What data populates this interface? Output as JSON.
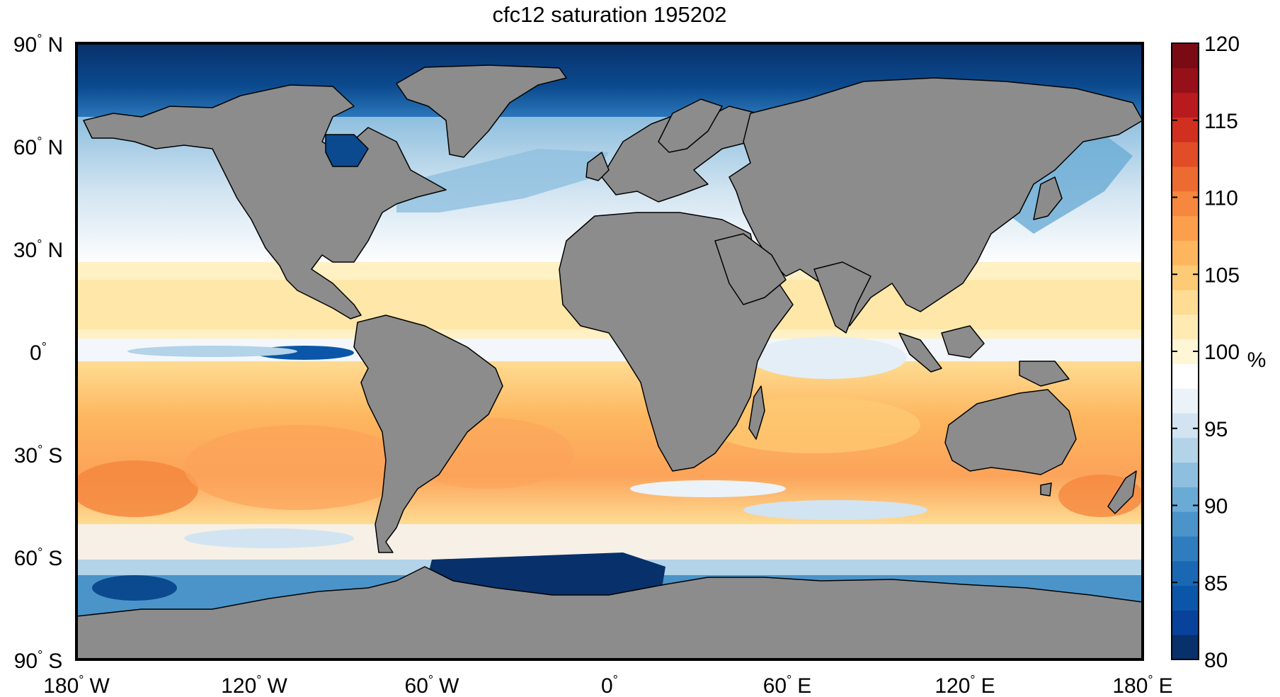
{
  "title": "cfc12 saturation 195202",
  "map": {
    "projection": "equirectangular",
    "lon_range": [
      -180,
      180
    ],
    "lat_range": [
      -90,
      90
    ],
    "land_color": "#8c8c8c",
    "coastline_color": "#000000"
  },
  "y_ticks": [
    {
      "lat": 90,
      "deg": "90",
      "hemi": "N"
    },
    {
      "lat": 60,
      "deg": "60",
      "hemi": "N"
    },
    {
      "lat": 30,
      "deg": "30",
      "hemi": "N"
    },
    {
      "lat": 0,
      "deg": "0",
      "hemi": ""
    },
    {
      "lat": -30,
      "deg": "30",
      "hemi": "S"
    },
    {
      "lat": -60,
      "deg": "60",
      "hemi": "S"
    },
    {
      "lat": -90,
      "deg": "90",
      "hemi": "S"
    }
  ],
  "x_ticks": [
    {
      "lon": -180,
      "deg": "180",
      "hemi": "W"
    },
    {
      "lon": -120,
      "deg": "120",
      "hemi": "W"
    },
    {
      "lon": -60,
      "deg": "60",
      "hemi": "W"
    },
    {
      "lon": 0,
      "deg": "0",
      "hemi": ""
    },
    {
      "lon": 60,
      "deg": "60",
      "hemi": "E"
    },
    {
      "lon": 120,
      "deg": "120",
      "hemi": "E"
    },
    {
      "lon": 180,
      "deg": "180",
      "hemi": "E"
    }
  ],
  "degree_symbol": "°",
  "colorbar": {
    "min": 80,
    "max": 120,
    "unit": "%",
    "ticks": [
      "80",
      "85",
      "90",
      "95",
      "100",
      "105",
      "110",
      "115",
      "120"
    ],
    "colors": [
      "#08306b",
      "#08429a",
      "#0b56a8",
      "#1a68b4",
      "#2f7dbf",
      "#4a94c9",
      "#6aabd5",
      "#8ebfdf",
      "#b2d3e8",
      "#d2e4f1",
      "#ebf2f8",
      "#ffffff",
      "#fff6d6",
      "#ffeab3",
      "#fedc93",
      "#fdca75",
      "#fdb65e",
      "#fc9f4c",
      "#f5873e",
      "#ec6b31",
      "#e04d27",
      "#d12f20",
      "#b81a1d",
      "#96101a",
      "#7a0b14"
    ]
  }
}
